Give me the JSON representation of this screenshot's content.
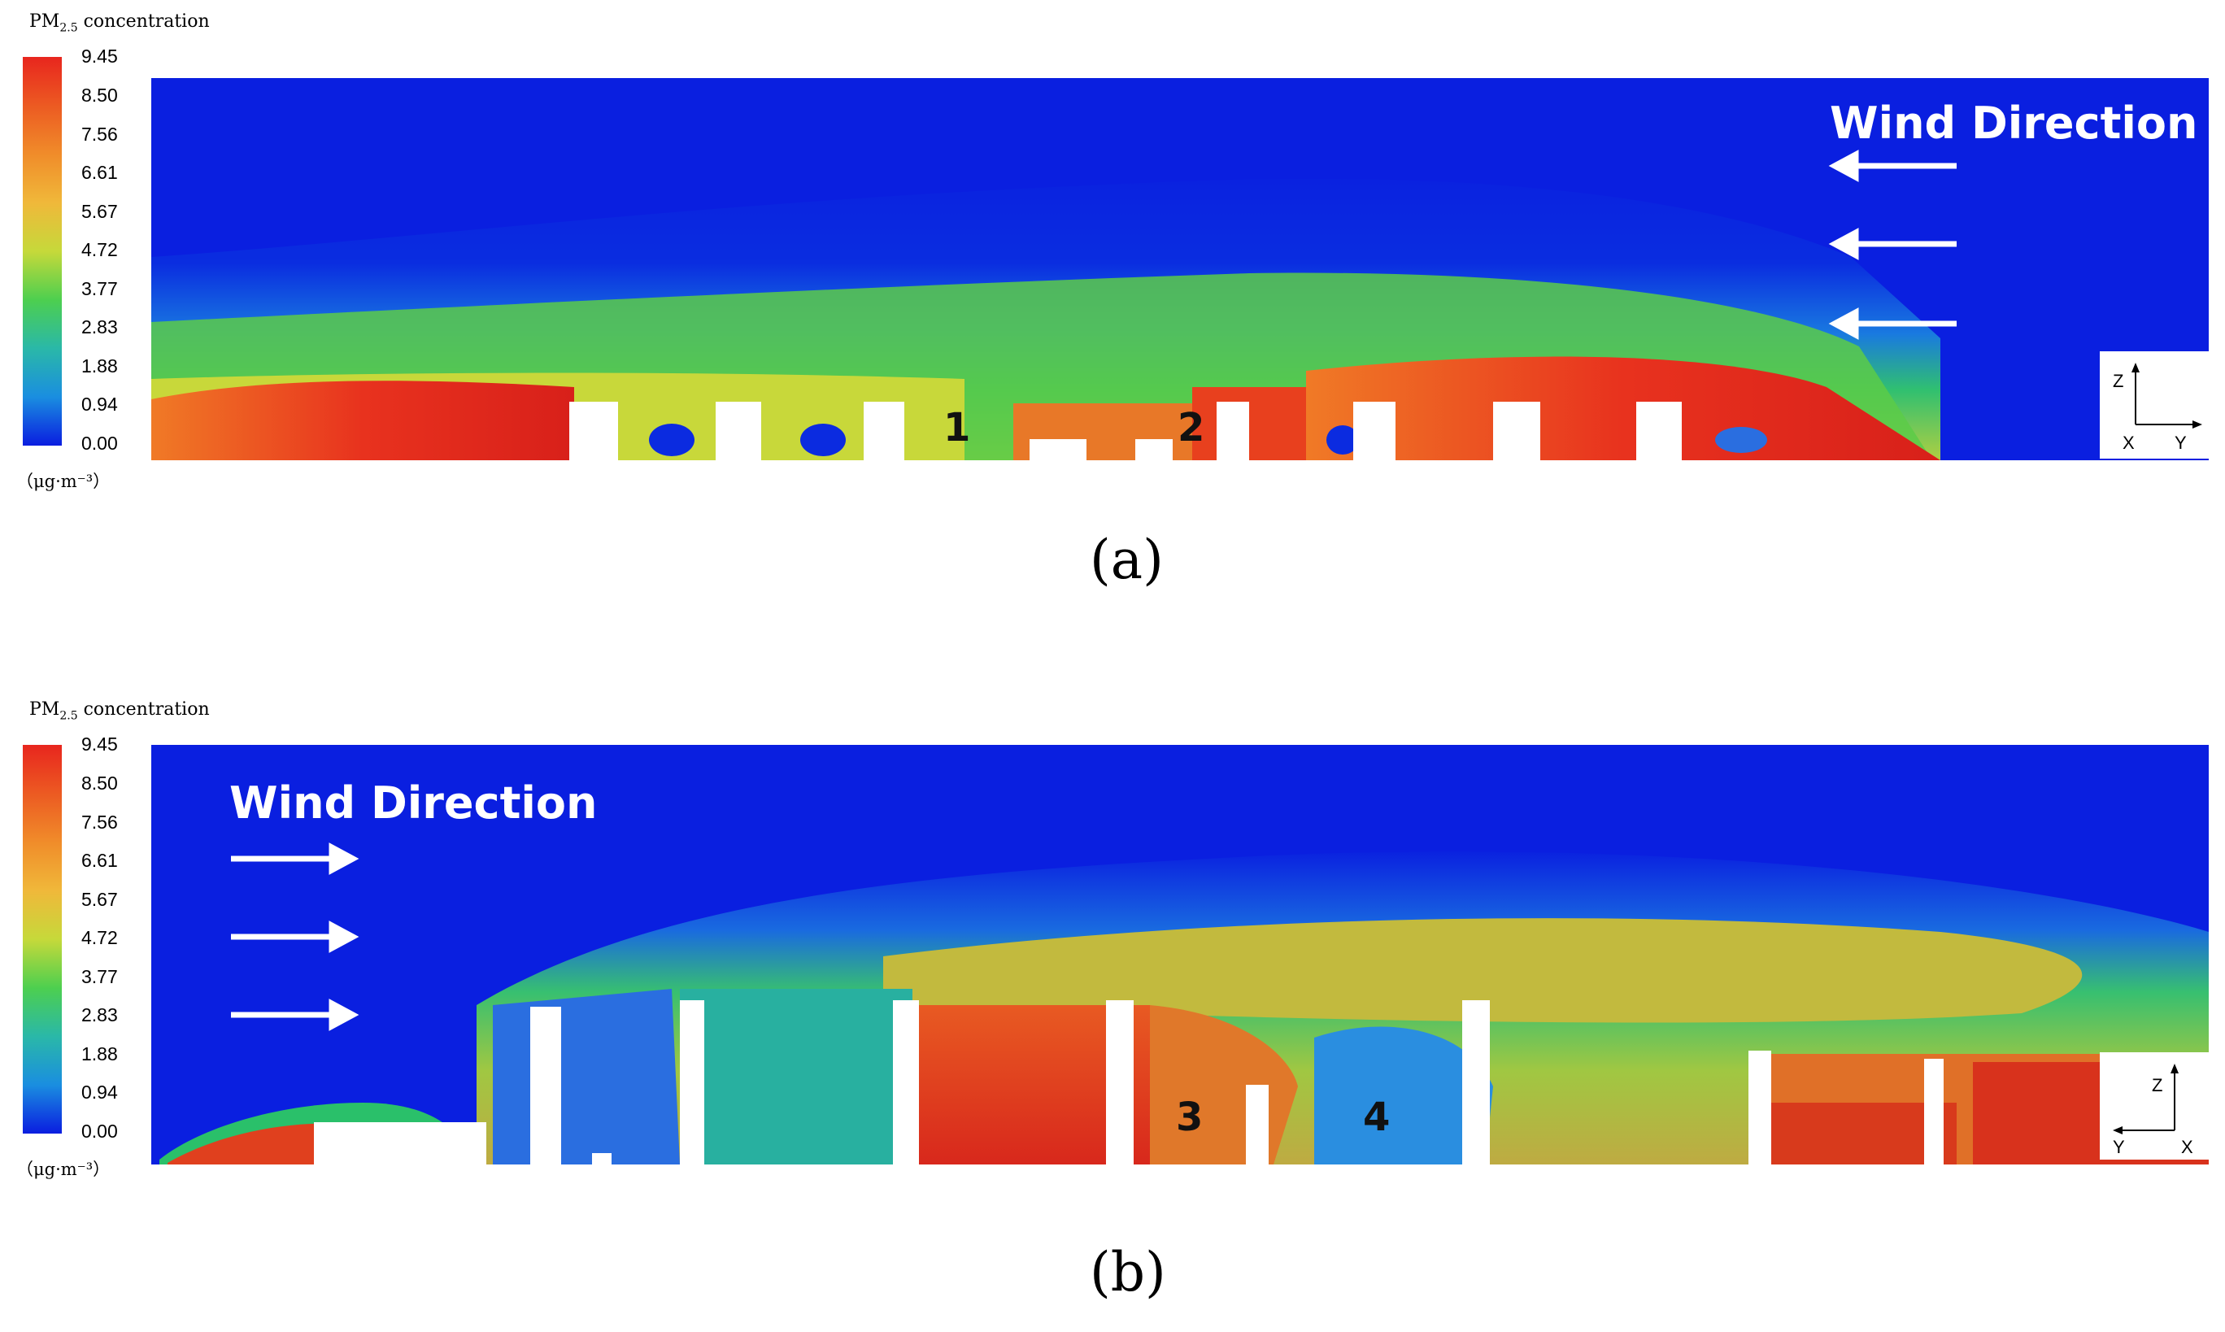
{
  "legend": {
    "title": "PM",
    "title_sub": "2.5",
    "title_rest": " concentration",
    "ticks": [
      "9.45",
      "8.50",
      "7.56",
      "6.61",
      "5.67",
      "4.72",
      "3.77",
      "2.83",
      "1.88",
      "0.94",
      "0.00"
    ],
    "unit": "（μg·m⁻³）",
    "colors": [
      "#e8261e",
      "#f08c2a",
      "#c6d93a",
      "#4dcf4f",
      "#2ab8a8",
      "#1a8ee0",
      "#0a1de0"
    ]
  },
  "panel_a": {
    "caption": "(a)",
    "wind_label": "Wind Direction",
    "wind_direction": "left",
    "building_numbers": [
      "1",
      "2"
    ],
    "axes": {
      "vertical": "Z",
      "horizontal": "Y",
      "origin": "X"
    }
  },
  "panel_b": {
    "caption": "(b)",
    "wind_label": "Wind Direction",
    "wind_direction": "right",
    "building_numbers": [
      "3",
      "4"
    ],
    "axes": {
      "vertical": "Z",
      "horizontal": "Y",
      "origin": "X"
    }
  }
}
